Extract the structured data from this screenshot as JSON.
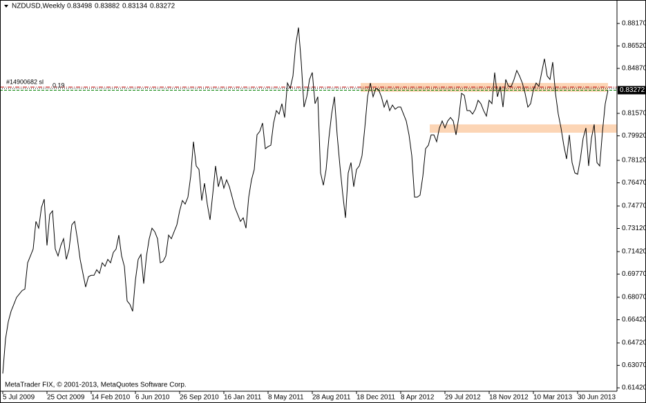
{
  "chart_data": {
    "type": "line",
    "title": "NZDUSD,Weekly",
    "header_values": [
      0.83498,
      0.83882,
      0.83134,
      0.83272
    ],
    "footer": "MetaTrader FIX, © 2001-2013, MetaQuotes Software Corp.",
    "annotations": [
      "#14900682 sl",
      "0.19"
    ],
    "categories": [
      "5 Jul 2009",
      null,
      null,
      null,
      null,
      null,
      null,
      null,
      null,
      null,
      null,
      null,
      null,
      null,
      null,
      null,
      "25 Oct 2009",
      null,
      null,
      null,
      null,
      null,
      null,
      null,
      null,
      null,
      null,
      null,
      null,
      null,
      null,
      null,
      "14 Feb 2010",
      null,
      null,
      null,
      null,
      null,
      null,
      null,
      null,
      null,
      null,
      null,
      null,
      null,
      null,
      null,
      "6 Jun 2010",
      null,
      null,
      null,
      null,
      null,
      null,
      null,
      null,
      null,
      null,
      null,
      null,
      null,
      null,
      null,
      "26 Sep 2010",
      null,
      null,
      null,
      null,
      null,
      null,
      null,
      null,
      null,
      null,
      null,
      null,
      null,
      null,
      null,
      "16 Jan 2011",
      null,
      null,
      null,
      null,
      null,
      null,
      null,
      null,
      null,
      null,
      null,
      null,
      null,
      null,
      null,
      "8 May 2011",
      null,
      null,
      null,
      null,
      null,
      null,
      null,
      null,
      null,
      null,
      null,
      null,
      null,
      null,
      null,
      "28 Aug 2011",
      null,
      null,
      null,
      null,
      null,
      null,
      null,
      null,
      null,
      null,
      null,
      null,
      null,
      null,
      null,
      "18 Dec 2011",
      null,
      null,
      null,
      null,
      null,
      null,
      null,
      null,
      null,
      null,
      null,
      null,
      null,
      null,
      null,
      "8 Apr 2012",
      null,
      null,
      null,
      null,
      null,
      null,
      null,
      null,
      null,
      null,
      null,
      null,
      null,
      null,
      null,
      "29 Jul 2012",
      null,
      null,
      null,
      null,
      null,
      null,
      null,
      null,
      null,
      null,
      null,
      null,
      null,
      null,
      null,
      "18 Nov 2012",
      null,
      null,
      null,
      null,
      null,
      null,
      null,
      null,
      null,
      null,
      null,
      null,
      null,
      null,
      null,
      "10 Mar 2013",
      null,
      null,
      null,
      null,
      null,
      null,
      null,
      null,
      null,
      null,
      null,
      null,
      null,
      null,
      null,
      "30 Jun 2013",
      null,
      null,
      null,
      null,
      null,
      null,
      null,
      null,
      null,
      null,
      null
    ],
    "series": [
      {
        "name": "NZDUSD",
        "color": "#000000",
        "values": [
          0.6247,
          0.6501,
          0.6628,
          0.6704,
          0.6755,
          0.6806,
          0.6831,
          0.6856,
          0.6867,
          0.706,
          0.711,
          0.7161,
          0.7364,
          0.7314,
          0.7466,
          0.7527,
          0.7187,
          0.7415,
          0.7441,
          0.7161,
          0.711,
          0.7187,
          0.7237,
          0.7085,
          0.7161,
          0.7339,
          0.7364,
          0.7237,
          0.7085,
          0.6983,
          0.6882,
          0.6958,
          0.6968,
          0.6968,
          0.7009,
          0.6983,
          0.706,
          0.7034,
          0.7085,
          0.706,
          0.7136,
          0.7161,
          0.7263,
          0.711,
          0.7034,
          0.678,
          0.6755,
          0.6704,
          0.6933,
          0.7085,
          0.7121,
          0.6907,
          0.711,
          0.7237,
          0.7314,
          0.7288,
          0.7237,
          0.706,
          0.707,
          0.711,
          0.7263,
          0.7237,
          0.7288,
          0.7339,
          0.7441,
          0.7517,
          0.7491,
          0.7542,
          0.7695,
          0.7949,
          0.7771,
          0.7745,
          0.7517,
          0.7644,
          0.7491,
          0.7375,
          0.7568,
          0.7771,
          0.7618,
          0.7695,
          0.7608,
          0.7669,
          0.7618,
          0.7542,
          0.7466,
          0.7415,
          0.7364,
          0.739,
          0.7314,
          0.7542,
          0.7669,
          0.7745,
          0.7999,
          0.8025,
          0.8086,
          0.7898,
          0.7913,
          0.7923,
          0.8086,
          0.8177,
          0.8152,
          0.8228,
          0.8126,
          0.838,
          0.834,
          0.8431,
          0.866,
          0.8787,
          0.8533,
          0.8203,
          0.8279,
          0.8406,
          0.8457,
          0.8228,
          0.8279,
          0.772,
          0.7629,
          0.7745,
          0.7974,
          0.8152,
          0.8279,
          0.7999,
          0.7771,
          0.7568,
          0.739,
          0.772,
          0.7796,
          0.7618,
          0.7745,
          0.7771,
          0.7847,
          0.805,
          0.8279,
          0.838,
          0.8279,
          0.834,
          0.833,
          0.8279,
          0.8203,
          0.8253,
          0.8177,
          0.8218,
          0.8187,
          0.8203,
          0.8203,
          0.8152,
          0.8101,
          0.7999,
          0.7847,
          0.7542,
          0.7542,
          0.7557,
          0.7695,
          0.7898,
          0.7923,
          0.7999,
          0.7999,
          0.7949,
          0.805,
          0.8101,
          0.805,
          0.8101,
          0.8126,
          0.8101,
          0.7999,
          0.8126,
          0.8304,
          0.8289,
          0.8177,
          0.8177,
          0.8152,
          0.8187,
          0.8253,
          0.8228,
          0.8177,
          0.8137,
          0.8253,
          0.8228,
          0.8457,
          0.8279,
          0.8355,
          0.8203,
          0.8406,
          0.8355,
          0.8355,
          0.8406,
          0.8472,
          0.8431,
          0.838,
          0.8304,
          0.8203,
          0.8228,
          0.833,
          0.838,
          0.8355,
          0.8457,
          0.8558,
          0.8431,
          0.8406,
          0.8533,
          0.8304,
          0.8152,
          0.805,
          0.7923,
          0.7822,
          0.7999,
          0.7796,
          0.772,
          0.771,
          0.7822,
          0.7974,
          0.805,
          0.7771,
          0.7974,
          0.8076,
          0.7796,
          0.7771,
          0.8025,
          0.8228,
          0.8327
        ]
      }
    ],
    "levels": [
      {
        "value": 0.835,
        "color": "#c00000",
        "style": "dashdot"
      },
      {
        "value": 0.834,
        "color": "#000000",
        "style": "dot"
      },
      {
        "value": 0.8327,
        "color": "#008000",
        "style": "dash"
      }
    ],
    "zones": [
      {
        "from": 0.8315,
        "to": 0.838,
        "color": "#fcd5b5"
      },
      {
        "from": 0.8015,
        "to": 0.8076,
        "color": "#fcd5b5"
      }
    ],
    "ylim": [
      0.6117,
      0.8979
    ],
    "yticks": [
      {
        "value": 0.8817,
        "label": "0.88170"
      },
      {
        "value": 0.8652,
        "label": "0.86520"
      },
      {
        "value": 0.8487,
        "label": "0.84870"
      },
      {
        "value": 0.8157,
        "label": "0.81570"
      },
      {
        "value": 0.7992,
        "label": "0.79920"
      },
      {
        "value": 0.7812,
        "label": "0.78120"
      },
      {
        "value": 0.7647,
        "label": "0.76470"
      },
      {
        "value": 0.7477,
        "label": "0.74770"
      },
      {
        "value": 0.7312,
        "label": "0.73120"
      },
      {
        "value": 0.7142,
        "label": "0.71420"
      },
      {
        "value": 0.6977,
        "label": "0.69770"
      },
      {
        "value": 0.6807,
        "label": "0.68070"
      },
      {
        "value": 0.6642,
        "label": "0.66420"
      },
      {
        "value": 0.6472,
        "label": "0.64720"
      },
      {
        "value": 0.6307,
        "label": "0.63070"
      },
      {
        "value": 0.6142,
        "label": "0.61420"
      }
    ],
    "grid": false
  }
}
